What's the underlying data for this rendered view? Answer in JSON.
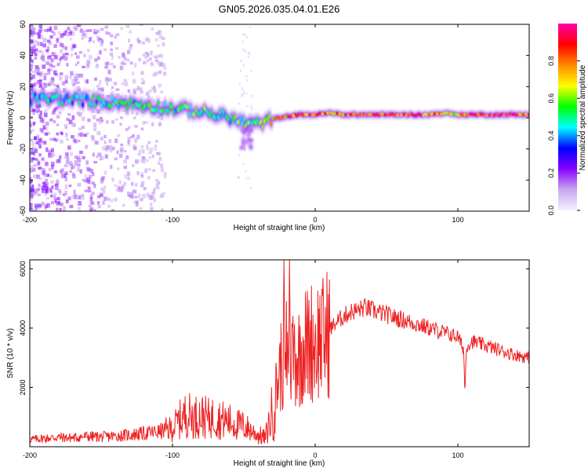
{
  "title": "GN05.2026.035.04.01.E26",
  "colors": {
    "snr_line": "#ee2222",
    "colormap": [
      "#f2f2ff",
      "#c8a8f0",
      "#8800ff",
      "#0000ff",
      "#00ffff",
      "#00ff00",
      "#ffff00",
      "#ff8800",
      "#ff0000",
      "#ff00aa"
    ]
  },
  "chart_data": [
    {
      "type": "heatmap",
      "xlabel": "Height of straight line (km)",
      "ylabel": "Frequency (Hz)",
      "xlim": [
        -200,
        150
      ],
      "ylim": [
        -60,
        60
      ],
      "xticks": [
        -200,
        -100,
        0,
        100
      ],
      "xtick_labels": [
        "-200",
        "-100",
        "0",
        "100"
      ],
      "yticks": [
        60,
        40,
        20,
        0,
        -20,
        -40,
        -60
      ],
      "ytick_labels": [
        "60",
        "40",
        "20",
        "0",
        "-20",
        "-40",
        "-60"
      ],
      "colorbar": {
        "label": "Normalized spectral amplitude",
        "range": [
          0,
          1
        ],
        "ticks": [
          0.0,
          0.2,
          0.4,
          0.6,
          0.8
        ],
        "tick_labels": [
          "0.0",
          "0.2",
          "0.4",
          "0.6",
          "0.8"
        ]
      },
      "ridge": {
        "x": [
          -200,
          -180,
          -160,
          -140,
          -120,
          -100,
          -80,
          -60,
          -50,
          -40,
          -30,
          -20,
          -10,
          0,
          10,
          20,
          40,
          60,
          80,
          90,
          100,
          110,
          130,
          150
        ],
        "freq": [
          12,
          12,
          11,
          10,
          8,
          6,
          4,
          0,
          -3,
          -4,
          -1,
          1,
          2,
          2,
          3,
          2,
          2,
          2,
          2,
          3,
          2,
          2,
          2,
          2
        ],
        "amplitude": [
          0.4,
          0.5,
          0.45,
          0.5,
          0.5,
          0.5,
          0.55,
          0.5,
          0.55,
          0.5,
          0.7,
          0.8,
          0.85,
          0.9,
          0.8,
          0.85,
          0.9,
          0.9,
          0.85,
          0.7,
          0.75,
          0.9,
          0.9,
          0.9
        ]
      }
    },
    {
      "type": "line",
      "xlabel": "Height of straight line (km)",
      "ylabel": "SNR (10 * v/v)",
      "xlim": [
        -200,
        150
      ],
      "ylim": [
        0,
        6300
      ],
      "xticks": [
        -200,
        -100,
        0,
        100
      ],
      "xtick_labels": [
        "-200",
        "-100",
        "0",
        "100"
      ],
      "yticks": [
        2000,
        4000,
        6000
      ],
      "ytick_labels": [
        "2000",
        "4000",
        "6000"
      ],
      "series": [
        {
          "x": [
            -200,
            -190,
            -180,
            -170,
            -160,
            -150,
            -140,
            -130,
            -120,
            -110,
            -100,
            -95,
            -90,
            -85,
            -80,
            -75,
            -70,
            -65,
            -60,
            -55,
            -50,
            -45,
            -40,
            -35,
            -30,
            -27,
            -25,
            -22,
            -20,
            -18,
            -15,
            -12,
            -10,
            -8,
            -5,
            -3,
            0,
            3,
            5,
            8,
            10,
            15,
            20,
            25,
            30,
            35,
            40,
            50,
            60,
            70,
            80,
            90,
            100,
            104,
            105,
            106,
            110,
            120,
            130,
            140,
            150
          ],
          "y": [
            250,
            280,
            320,
            300,
            350,
            330,
            360,
            400,
            450,
            500,
            620,
            900,
            1100,
            1000,
            1050,
            950,
            1000,
            900,
            850,
            750,
            700,
            550,
            400,
            300,
            1200,
            2000,
            2600,
            3000,
            3400,
            3100,
            3300,
            3000,
            3200,
            3500,
            3400,
            3600,
            3500,
            3700,
            3600,
            3800,
            3950,
            4200,
            4400,
            4550,
            4600,
            4700,
            4600,
            4450,
            4300,
            4150,
            4000,
            3850,
            3700,
            3300,
            1800,
            3400,
            3550,
            3400,
            3250,
            3100,
            3000
          ]
        }
      ]
    }
  ]
}
